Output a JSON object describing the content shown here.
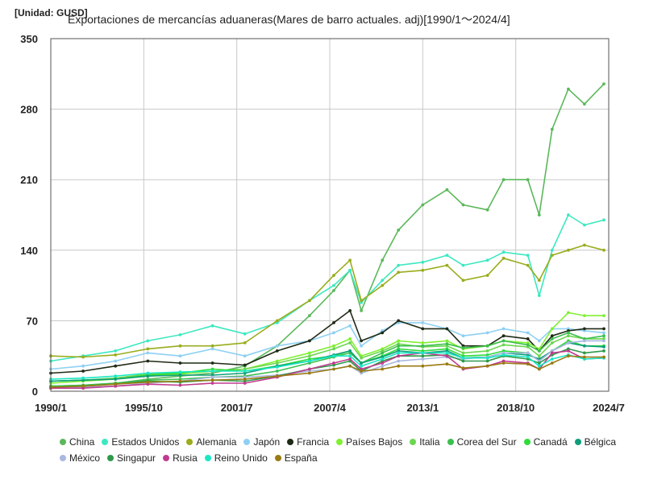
{
  "unit_label": "[Unidad: GUSD]",
  "title": "Exportaciones de mercancías aduaneras(Mares de barro actuales. adj)[1990/1～2024/4]",
  "chart_data": {
    "type": "line",
    "x_tick_labels": [
      "1990/1",
      "1995/10",
      "2001/7",
      "2007/4",
      "2013/1",
      "2018/10",
      "2024/7"
    ],
    "y_tick_labels": [
      "0",
      "70",
      "140",
      "210",
      "280",
      "350"
    ],
    "ylim": [
      0,
      350
    ],
    "grid": true,
    "legend_position": "bottom",
    "x": [
      1990.0,
      1992.0,
      1994.0,
      1996.0,
      1998.0,
      2000.0,
      2002.0,
      2004.0,
      2006.0,
      2007.5,
      2008.5,
      2009.2,
      2010.5,
      2011.5,
      2013.0,
      2014.5,
      2015.5,
      2017.0,
      2018.0,
      2019.5,
      2020.2,
      2021.0,
      2022.0,
      2023.0,
      2024.2
    ],
    "series": [
      {
        "name": "China",
        "color": "#5bb85b",
        "values": [
          5,
          6,
          8,
          12,
          15,
          18,
          25,
          45,
          75,
          100,
          120,
          80,
          130,
          160,
          185,
          200,
          185,
          180,
          210,
          210,
          175,
          260,
          300,
          285,
          305
        ]
      },
      {
        "name": "Estados Unidos",
        "color": "#3de8c1",
        "values": [
          30,
          35,
          40,
          50,
          56,
          65,
          57,
          68,
          90,
          105,
          120,
          88,
          110,
          125,
          128,
          135,
          125,
          130,
          138,
          135,
          95,
          140,
          175,
          165,
          170
        ]
      },
      {
        "name": "Alemania",
        "color": "#9aac1c",
        "values": [
          35,
          34,
          36,
          42,
          45,
          45,
          48,
          70,
          90,
          115,
          130,
          90,
          105,
          118,
          120,
          125,
          110,
          115,
          132,
          125,
          110,
          135,
          140,
          145,
          140
        ]
      },
      {
        "name": "Japón",
        "color": "#8ed0f3",
        "values": [
          22,
          25,
          30,
          38,
          35,
          42,
          35,
          45,
          50,
          58,
          65,
          45,
          60,
          68,
          68,
          62,
          55,
          58,
          62,
          58,
          50,
          62,
          62,
          60,
          58
        ]
      },
      {
        "name": "Francia",
        "color": "#1f2a15",
        "values": [
          18,
          20,
          25,
          30,
          28,
          28,
          26,
          40,
          50,
          68,
          80,
          50,
          58,
          70,
          62,
          62,
          45,
          45,
          55,
          52,
          40,
          55,
          60,
          62,
          62
        ]
      },
      {
        "name": "Países Bajos",
        "color": "#80f032",
        "values": [
          8,
          10,
          12,
          15,
          17,
          20,
          22,
          30,
          38,
          45,
          52,
          35,
          42,
          50,
          48,
          50,
          42,
          45,
          50,
          48,
          42,
          62,
          78,
          75,
          75
        ]
      },
      {
        "name": "Italia",
        "color": "#6cd650",
        "values": [
          10,
          11,
          13,
          17,
          19,
          20,
          22,
          28,
          35,
          42,
          48,
          33,
          40,
          47,
          44,
          45,
          38,
          40,
          46,
          44,
          35,
          48,
          55,
          52,
          52
        ]
      },
      {
        "name": "Corea del Sur",
        "color": "#3cbf4f",
        "values": [
          5,
          6,
          8,
          11,
          12,
          14,
          15,
          20,
          28,
          34,
          38,
          28,
          38,
          45,
          45,
          47,
          43,
          45,
          50,
          46,
          40,
          52,
          58,
          52,
          55
        ]
      },
      {
        "name": "Canadá",
        "color": "#2fdc3a",
        "values": [
          10,
          11,
          12,
          16,
          18,
          22,
          20,
          25,
          32,
          35,
          40,
          28,
          35,
          42,
          40,
          42,
          35,
          36,
          40,
          38,
          30,
          40,
          50,
          45,
          45
        ]
      },
      {
        "name": "Bélgica",
        "color": "#0e9e7a",
        "values": [
          10,
          11,
          12,
          15,
          16,
          16,
          18,
          25,
          30,
          36,
          40,
          28,
          34,
          40,
          38,
          40,
          33,
          34,
          38,
          36,
          32,
          40,
          48,
          45,
          44
        ]
      },
      {
        "name": "México",
        "color": "#a9b8e0",
        "values": [
          3,
          4,
          5,
          8,
          10,
          14,
          14,
          16,
          20,
          22,
          25,
          18,
          25,
          30,
          32,
          34,
          32,
          34,
          38,
          38,
          30,
          40,
          48,
          50,
          50
        ]
      },
      {
        "name": "Singapur",
        "color": "#2e9a4a",
        "values": [
          4,
          5,
          7,
          10,
          9,
          11,
          10,
          15,
          22,
          26,
          30,
          20,
          30,
          35,
          35,
          36,
          30,
          30,
          35,
          32,
          28,
          36,
          42,
          38,
          40
        ]
      },
      {
        "name": "Rusia",
        "color": "#c03a8f",
        "values": [
          3,
          3,
          5,
          7,
          6,
          8,
          8,
          14,
          22,
          28,
          32,
          22,
          28,
          35,
          38,
          35,
          22,
          25,
          30,
          28,
          22,
          38,
          40,
          32,
          33
        ]
      },
      {
        "name": "Reino Unido",
        "color": "#19e8c4",
        "values": [
          12,
          13,
          15,
          18,
          19,
          20,
          20,
          24,
          30,
          35,
          35,
          25,
          32,
          38,
          38,
          38,
          33,
          33,
          36,
          34,
          25,
          32,
          36,
          32,
          33
        ]
      },
      {
        "name": "España",
        "color": "#9a7a12",
        "values": [
          4,
          5,
          7,
          9,
          10,
          11,
          12,
          15,
          18,
          22,
          25,
          20,
          22,
          25,
          25,
          27,
          23,
          25,
          28,
          27,
          22,
          28,
          35,
          34,
          34
        ]
      }
    ]
  }
}
